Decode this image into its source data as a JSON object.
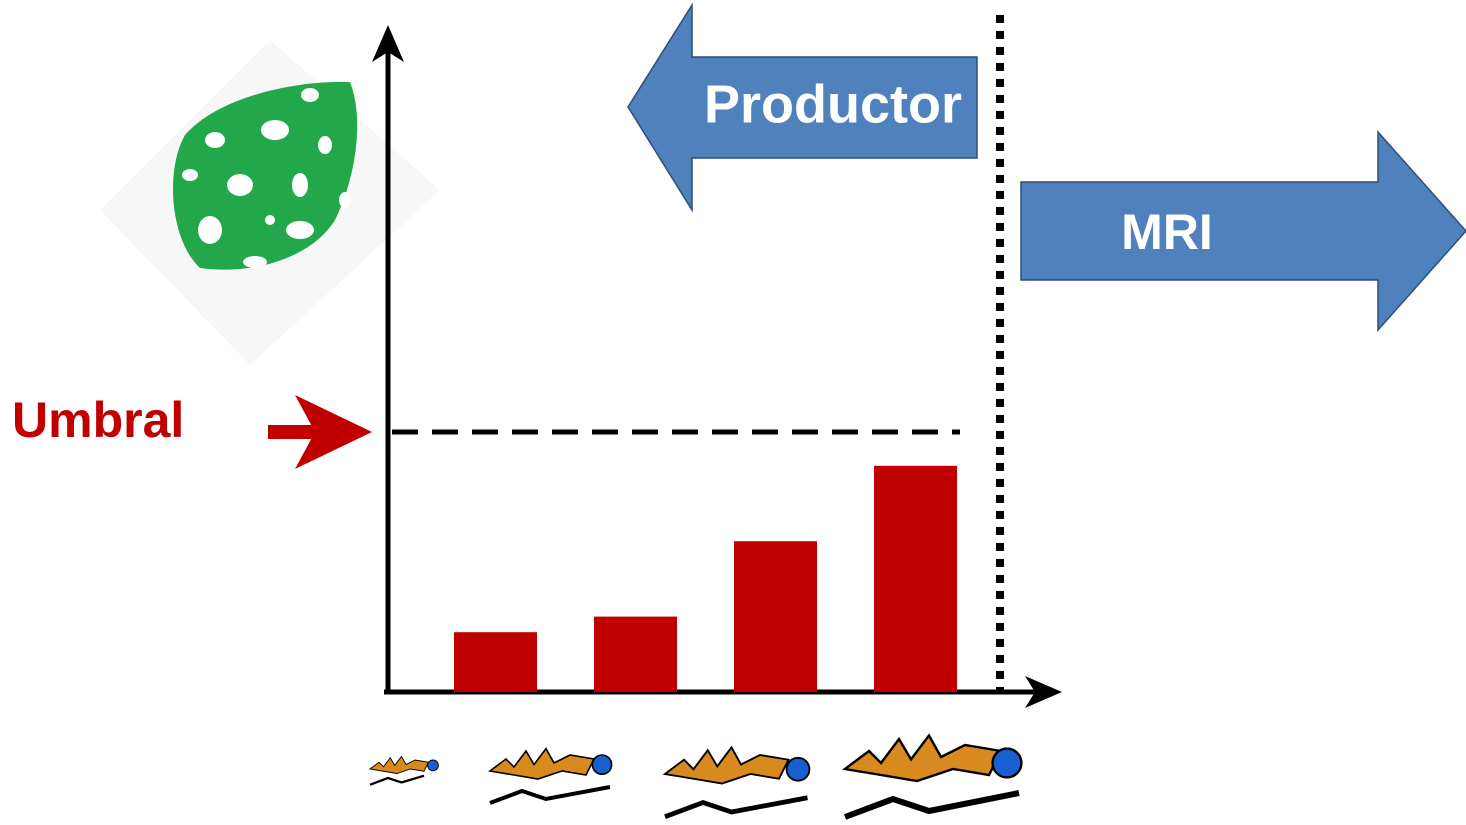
{
  "chart_data": {
    "type": "bar",
    "categories": [
      null,
      null,
      null,
      null
    ],
    "values": [
      23,
      29,
      58,
      87
    ],
    "color": "#c00000",
    "ylim": [
      0,
      250
    ],
    "threshold": {
      "label": "Umbral",
      "value": 100,
      "color": "#c00000"
    },
    "annotations": [
      {
        "text": "Productor",
        "color": "#4f81bd"
      },
      {
        "text": "MRI",
        "color": "#4f81bd"
      }
    ]
  }
}
